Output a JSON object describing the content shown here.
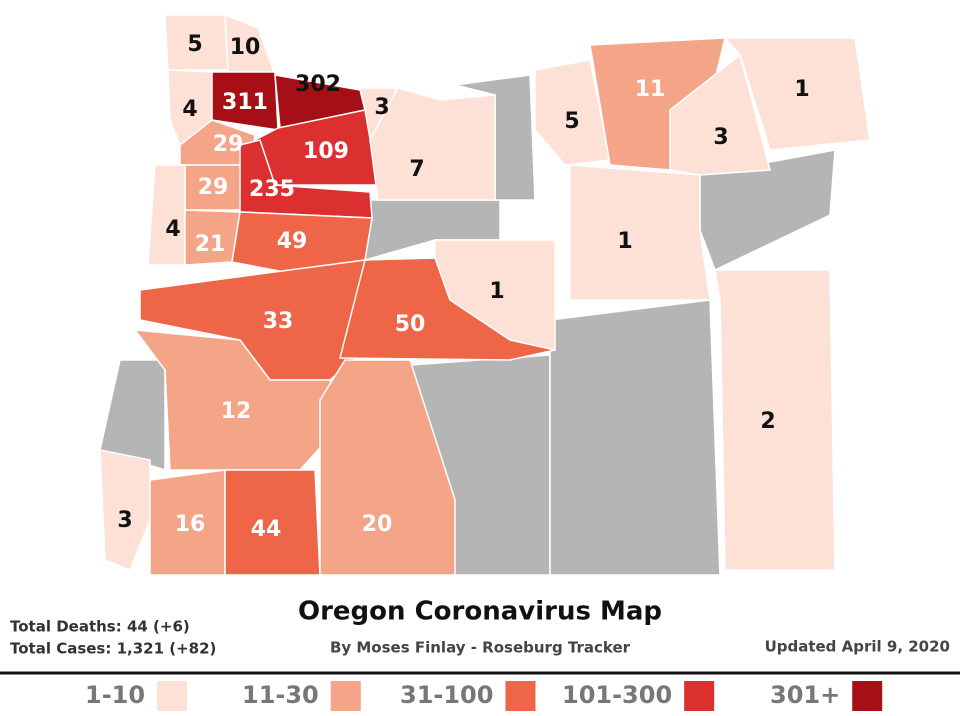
{
  "title": "Oregon Coronavirus Map",
  "subtitle": "By Moses Finlay - Roseburg Tracker",
  "stats": [
    "Total Deaths: 44 (+6)",
    "Total Cases: 1,321 (+82)"
  ],
  "updated": "Updated April 9, 2020",
  "legend": [
    {
      "label": "1-10",
      "color": "#fde0d6"
    },
    {
      "label": "11-30",
      "color": "#f4a487"
    },
    {
      "label": "31-100",
      "color": "#ef6548"
    },
    {
      "label": "101-300",
      "color": "#dc3030"
    },
    {
      "label": "301+",
      "color": "#a50f15"
    }
  ],
  "counties": [
    {
      "cases": 5,
      "color": "#fde0d6"
    },
    {
      "cases": 10,
      "color": "#fde0d6"
    },
    {
      "cases": 4,
      "color": "#fde0d6"
    },
    {
      "cases": 311,
      "color": "#a50f15"
    },
    {
      "cases": 302,
      "color": "#a50f15"
    },
    {
      "cases": 3,
      "color": "#fde0d6"
    },
    {
      "cases": 29,
      "color": "#f4a487"
    },
    {
      "cases": 109,
      "color": "#dc3030"
    },
    {
      "cases": 7,
      "color": "#fde0d6"
    },
    {
      "cases": 29,
      "color": "#f4a487"
    },
    {
      "cases": 235,
      "color": "#dc3030"
    },
    {
      "cases": 4,
      "color": "#fde0d6"
    },
    {
      "cases": 21,
      "color": "#f4a487"
    },
    {
      "cases": 49,
      "color": "#ef6548"
    },
    {
      "cases": 1,
      "color": "#fde0d6"
    },
    {
      "cases": 5,
      "color": "#fde0d6"
    },
    {
      "cases": 11,
      "color": "#f4a487"
    },
    {
      "cases": 3,
      "color": "#fde0d6"
    },
    {
      "cases": 1,
      "color": "#fde0d6"
    },
    {
      "cases": 1,
      "color": "#fde0d6"
    },
    {
      "cases": 33,
      "color": "#ef6548"
    },
    {
      "cases": 50,
      "color": "#ef6548"
    },
    {
      "cases": 12,
      "color": "#f4a487"
    },
    {
      "cases": 2,
      "color": "#fde0d6"
    },
    {
      "cases": 3,
      "color": "#fde0d6"
    },
    {
      "cases": 16,
      "color": "#f4a487"
    },
    {
      "cases": 44,
      "color": "#ef6548"
    },
    {
      "cases": 20,
      "color": "#f4a487"
    }
  ]
}
